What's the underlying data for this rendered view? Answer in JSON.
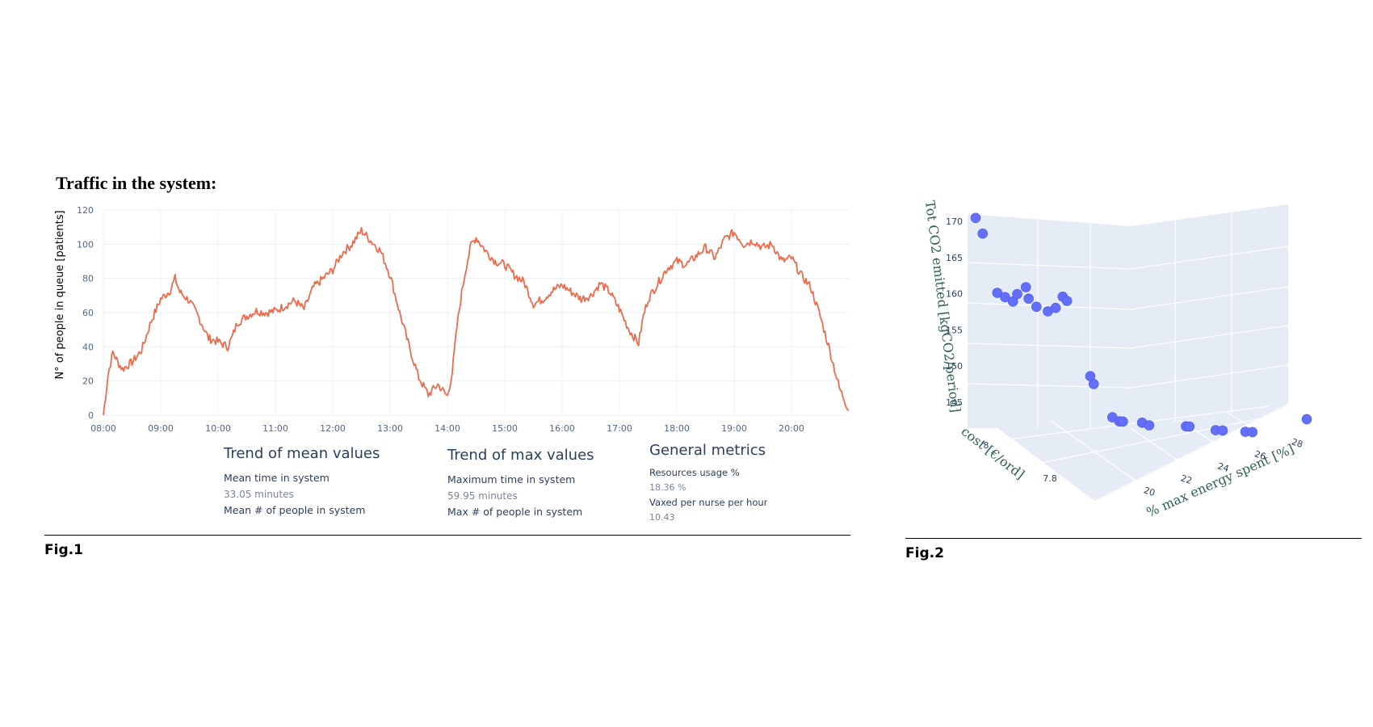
{
  "figure1": {
    "title": "Traffic in the system:",
    "caption": "Fig.1",
    "metrics": [
      {
        "heading": "Trend of mean values",
        "items": [
          {
            "label": "Mean time in system",
            "value": "33.05 minutes"
          },
          {
            "label": "Mean # of people in system",
            "value": ""
          }
        ]
      },
      {
        "heading": "Trend of max values",
        "items": [
          {
            "label": "Maximum time in system",
            "value": "59.95 minutes"
          },
          {
            "label": "Max # of people in system",
            "value": ""
          }
        ]
      },
      {
        "heading": "General metrics",
        "items": [
          {
            "label": "Resources usage %",
            "value": "18.36 %"
          },
          {
            "label": "Vaxed per nurse per hour",
            "value": "10.43"
          }
        ]
      }
    ]
  },
  "figure2": {
    "caption": "Fig.2"
  },
  "chart_data": [
    {
      "type": "line",
      "title": "Traffic in the system:",
      "xlabel": "",
      "ylabel": "N° of people in queue [patients]",
      "x_ticks": [
        "08:00",
        "09:00",
        "10:00",
        "11:00",
        "12:00",
        "13:00",
        "14:00",
        "15:00",
        "16:00",
        "17:00",
        "18:00",
        "19:00",
        "20:00"
      ],
      "xlim": [
        "08:00",
        "21:00"
      ],
      "ylim": [
        0,
        120
      ],
      "y_ticks": [
        0,
        20,
        40,
        60,
        80,
        100,
        120
      ],
      "grid": true,
      "color": "#ef6a4a",
      "series": [
        {
          "x": [
            "08:00",
            "08:05",
            "08:10",
            "08:15",
            "08:20",
            "08:30",
            "08:40",
            "08:50",
            "09:00",
            "09:10",
            "09:15",
            "09:20",
            "09:30",
            "09:40",
            "09:50",
            "10:00",
            "10:10",
            "10:15",
            "10:20",
            "10:30",
            "10:40",
            "10:50",
            "11:00",
            "11:10",
            "11:20",
            "11:30",
            "11:40",
            "11:50",
            "12:00",
            "12:10",
            "12:20",
            "12:30",
            "12:40",
            "12:50",
            "13:00",
            "13:10",
            "13:20",
            "13:30",
            "13:40",
            "13:50",
            "14:00",
            "14:05",
            "14:10",
            "14:15",
            "14:20",
            "14:25",
            "14:30",
            "14:40",
            "14:50",
            "15:00",
            "15:10",
            "15:20",
            "15:30",
            "15:40",
            "15:50",
            "16:00",
            "16:10",
            "16:20",
            "16:30",
            "16:40",
            "16:50",
            "17:00",
            "17:10",
            "17:20",
            "17:25",
            "17:30",
            "17:40",
            "17:50",
            "18:00",
            "18:10",
            "18:20",
            "18:30",
            "18:40",
            "18:50",
            "19:00",
            "19:10",
            "19:20",
            "19:30",
            "19:40",
            "19:50",
            "20:00",
            "20:10",
            "20:20",
            "20:30",
            "20:40",
            "20:50",
            "21:00"
          ],
          "values": [
            0,
            24,
            37,
            31,
            27,
            31,
            38,
            55,
            68,
            73,
            80,
            72,
            67,
            57,
            45,
            43,
            40,
            46,
            54,
            58,
            61,
            60,
            61,
            64,
            67,
            62,
            75,
            80,
            85,
            95,
            100,
            108,
            102,
            96,
            82,
            60,
            40,
            22,
            12,
            18,
            11,
            25,
            52,
            72,
            88,
            100,
            104,
            96,
            90,
            88,
            82,
            78,
            65,
            68,
            73,
            76,
            72,
            68,
            70,
            77,
            72,
            62,
            50,
            42,
            58,
            68,
            77,
            86,
            90,
            88,
            93,
            98,
            92,
            103,
            107,
            100,
            102,
            98,
            100,
            90,
            92,
            82,
            75,
            58,
            38,
            16,
            3
          ]
        }
      ]
    },
    {
      "type": "scatter",
      "subtype": "3d",
      "xlabel": "cost [€/ord]",
      "ylabel": "% max energy spent [%]",
      "zlabel": "Tot CO2 emitted [kgCO2/period]",
      "x_ticks": [
        7.8,
        8
      ],
      "y_ticks": [
        20,
        22,
        24,
        26,
        28
      ],
      "z_ticks": [
        145,
        150,
        155,
        160,
        165,
        170
      ],
      "zlim": [
        145,
        171
      ],
      "color": "#636efa",
      "points": [
        {
          "cost": 8.1,
          "energy": 19.0,
          "co2": 170.5
        },
        {
          "cost": 8.1,
          "energy": 19.2,
          "co2": 168.5
        },
        {
          "cost": 8.05,
          "energy": 19.5,
          "co2": 161.0
        },
        {
          "cost": 8.04,
          "energy": 19.7,
          "co2": 160.5
        },
        {
          "cost": 8.03,
          "energy": 19.9,
          "co2": 160.0
        },
        {
          "cost": 8.02,
          "energy": 20.0,
          "co2": 161.0
        },
        {
          "cost": 8.0,
          "energy": 20.2,
          "co2": 162.0
        },
        {
          "cost": 8.01,
          "energy": 20.3,
          "co2": 160.5
        },
        {
          "cost": 8.0,
          "energy": 20.5,
          "co2": 159.5
        },
        {
          "cost": 7.99,
          "energy": 20.8,
          "co2": 159.0
        },
        {
          "cost": 7.98,
          "energy": 21.0,
          "co2": 159.5
        },
        {
          "cost": 7.98,
          "energy": 21.2,
          "co2": 161.0
        },
        {
          "cost": 7.97,
          "energy": 21.3,
          "co2": 160.5
        },
        {
          "cost": 7.9,
          "energy": 21.8,
          "co2": 151.0
        },
        {
          "cost": 7.9,
          "energy": 21.9,
          "co2": 150.0
        },
        {
          "cost": 7.8,
          "energy": 22.2,
          "co2": 146.0
        },
        {
          "cost": 7.8,
          "energy": 22.4,
          "co2": 145.5
        },
        {
          "cost": 7.8,
          "energy": 22.5,
          "co2": 145.5
        },
        {
          "cost": 7.78,
          "energy": 23.0,
          "co2": 145.5
        },
        {
          "cost": 7.78,
          "energy": 23.2,
          "co2": 145.2
        },
        {
          "cost": 7.76,
          "energy": 24.2,
          "co2": 145.3
        },
        {
          "cost": 7.76,
          "energy": 24.3,
          "co2": 145.3
        },
        {
          "cost": 7.74,
          "energy": 25.0,
          "co2": 145.0
        },
        {
          "cost": 7.74,
          "energy": 25.2,
          "co2": 145.0
        },
        {
          "cost": 7.72,
          "energy": 25.8,
          "co2": 145.0
        },
        {
          "cost": 7.72,
          "energy": 26.0,
          "co2": 145.0
        },
        {
          "cost": 7.7,
          "energy": 27.5,
          "co2": 147.0
        }
      ]
    }
  ]
}
